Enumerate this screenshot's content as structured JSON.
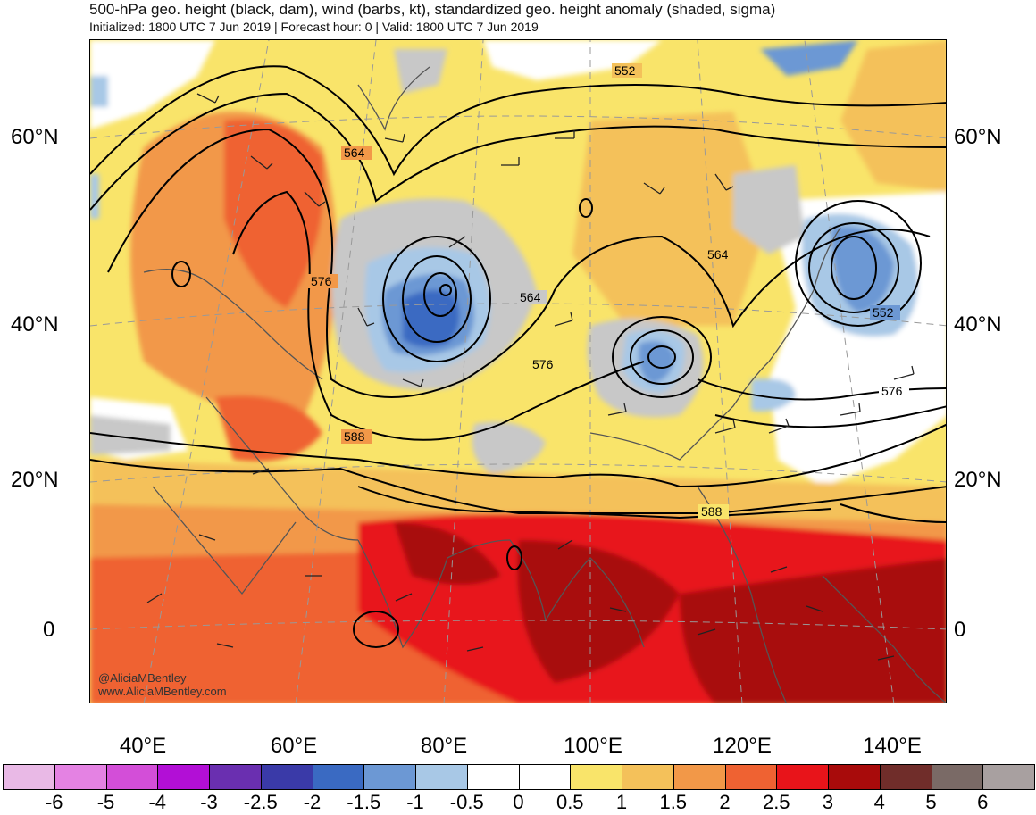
{
  "header": {
    "title": "500-hPa geo. height (black, dam), wind (barbs, kt), standardized geo. height anomaly (shaded, sigma)",
    "subtitle": "Initialized: 1800 UTC 7 Jun 2019 | Forecast hour: 0 | Valid: 1800 UTC 7 Jun 2019"
  },
  "map": {
    "lat_labels": [
      "60°N",
      "40°N",
      "20°N",
      "0"
    ],
    "lon_labels": [
      "40°E",
      "60°E",
      "80°E",
      "100°E",
      "120°E",
      "140°E"
    ],
    "contour_labels": [
      "552",
      "564",
      "576",
      "588",
      "564",
      "576",
      "552",
      "564",
      "576",
      "588"
    ],
    "credit_line1": "@AliciaMBentley",
    "credit_line2": "www.AliciaMBentley.com"
  },
  "colorbar": {
    "labels": [
      "-6",
      "-5",
      "-4",
      "-3",
      "-2.5",
      "-2",
      "-1.5",
      "-1",
      "-0.5",
      "0",
      "0.5",
      "1",
      "1.5",
      "2",
      "2.5",
      "3",
      "4",
      "5",
      "6"
    ],
    "colors": [
      "#e9b9e6",
      "#e482e3",
      "#d34ed8",
      "#b20fd6",
      "#6a2fb0",
      "#3a3aa8",
      "#3a6ac2",
      "#6c98d4",
      "#a8c8e6",
      "#ffffff",
      "#ffffff",
      "#f9e46a",
      "#f4c15a",
      "#f29848",
      "#ef6232",
      "#e8141a",
      "#a80b0b",
      "#702d2a",
      "#7a6a66",
      "#a8a0a0"
    ]
  }
}
